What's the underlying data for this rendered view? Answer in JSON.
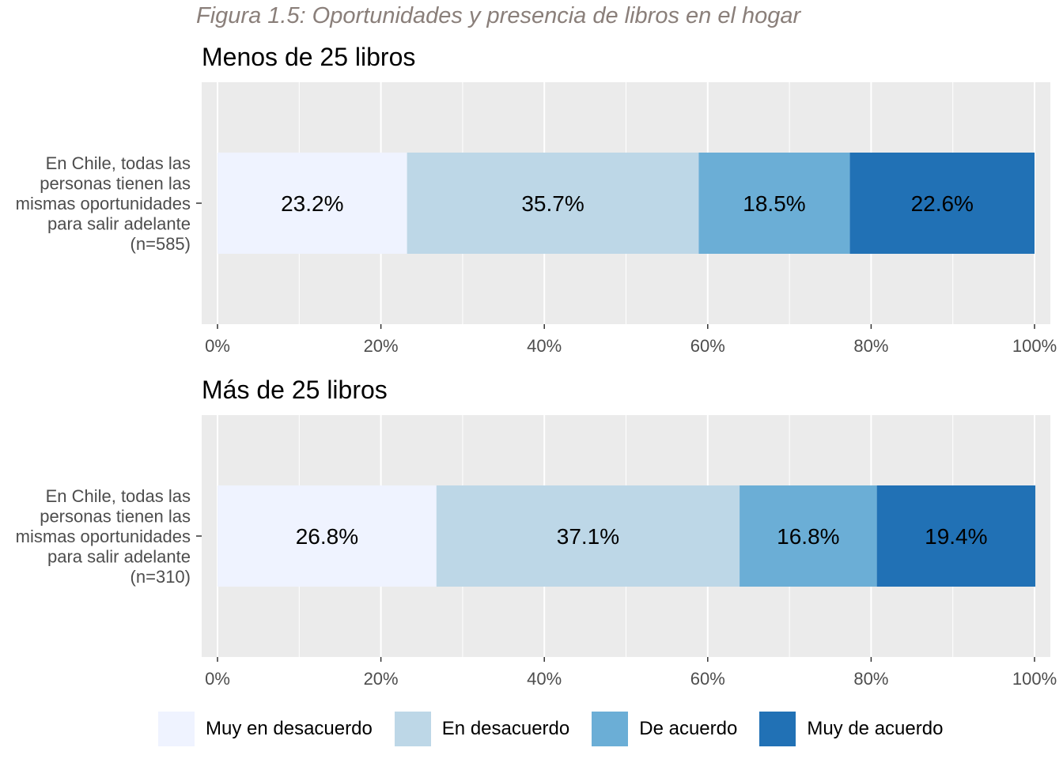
{
  "figure_title": "Figura 1.5: Oportunidades y presencia de libros en el hogar",
  "colors": {
    "panel_bg": "#ebebeb",
    "grid": "#ffffff",
    "axis_text": "#4d4d4d",
    "categories": [
      "#eff3ff",
      "#bdd7e7",
      "#6baed6",
      "#2171b5"
    ]
  },
  "chart_data": [
    {
      "type": "bar",
      "orientation": "horizontal",
      "stacked": true,
      "title": "Menos de 25 libros",
      "category_label": [
        "En Chile, todas las",
        "personas tienen las",
        "mismas oportunidades",
        "para salir adelante",
        "(n=585)"
      ],
      "series": [
        {
          "name": "Muy en desacuerdo",
          "values": [
            23.2
          ],
          "label": "23.2%"
        },
        {
          "name": "En desacuerdo",
          "values": [
            35.7
          ],
          "label": "35.7%"
        },
        {
          "name": "De acuerdo",
          "values": [
            18.5
          ],
          "label": "18.5%"
        },
        {
          "name": "Muy de acuerdo",
          "values": [
            22.6
          ],
          "label": "22.6%"
        }
      ],
      "xlim": [
        0,
        100
      ],
      "xticks": [
        "0%",
        "20%",
        "40%",
        "60%",
        "80%",
        "100%"
      ],
      "grid": true
    },
    {
      "type": "bar",
      "orientation": "horizontal",
      "stacked": true,
      "title": "Más de 25 libros",
      "category_label": [
        "En Chile, todas las",
        "personas tienen las",
        "mismas oportunidades",
        "para salir adelante",
        "(n=310)"
      ],
      "series": [
        {
          "name": "Muy en desacuerdo",
          "values": [
            26.8
          ],
          "label": "26.8%"
        },
        {
          "name": "En desacuerdo",
          "values": [
            37.1
          ],
          "label": "37.1%"
        },
        {
          "name": "De acuerdo",
          "values": [
            16.8
          ],
          "label": "16.8%"
        },
        {
          "name": "Muy de acuerdo",
          "values": [
            19.4
          ],
          "label": "19.4%"
        }
      ],
      "xlim": [
        0,
        100
      ],
      "xticks": [
        "0%",
        "20%",
        "40%",
        "60%",
        "80%",
        "100%"
      ],
      "grid": true
    }
  ],
  "legend": {
    "position": "bottom",
    "items": [
      "Muy en desacuerdo",
      "En desacuerdo",
      "De acuerdo",
      "Muy de acuerdo"
    ]
  }
}
